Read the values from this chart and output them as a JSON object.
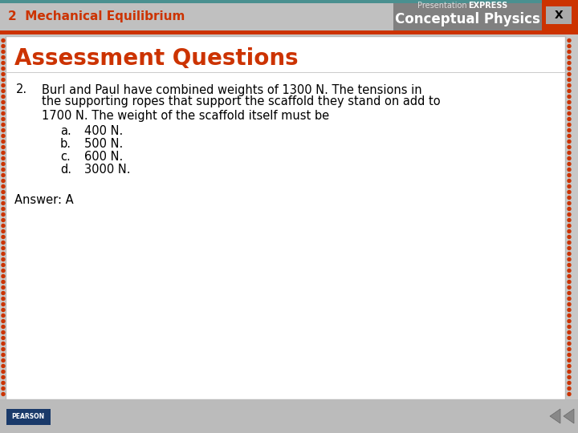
{
  "header_bg": "#C0C0C0",
  "header_text": "2  Mechanical Equilibrium",
  "header_text_color": "#CC3300",
  "header_font_size": 11,
  "brand_bg": "#808080",
  "brand_top_text_regular": "Presentation",
  "brand_top_text_bold": "EXPRESS",
  "brand_bottom_text": "Conceptual Physics",
  "title_text": "Assessment Questions",
  "title_color": "#CC3300",
  "title_font_size": 20,
  "body_bg": "#FFFFFF",
  "slide_bg": "#C8C8C8",
  "question_number": "2.",
  "question_line1": "Burl and Paul have combined weights of 1300 N. The tensions in",
  "question_line2": "the supporting ropes that support the scaffold they stand on add to",
  "question_line3": "1700 N. The weight of the scaffold itself must be",
  "choices": [
    [
      "a.",
      "400 N."
    ],
    [
      "b.",
      "500 N."
    ],
    [
      "c.",
      "600 N."
    ],
    [
      "d.",
      "3000 N."
    ]
  ],
  "answer": "Answer: A",
  "body_font_size": 10.5,
  "answer_font_size": 10.5,
  "dot_color": "#CC3300",
  "red_bar_color": "#CC3300",
  "x_btn_color": "#CC3300",
  "footer_bg": "#BBBBBB",
  "teal_bar_color": "#4A9090"
}
